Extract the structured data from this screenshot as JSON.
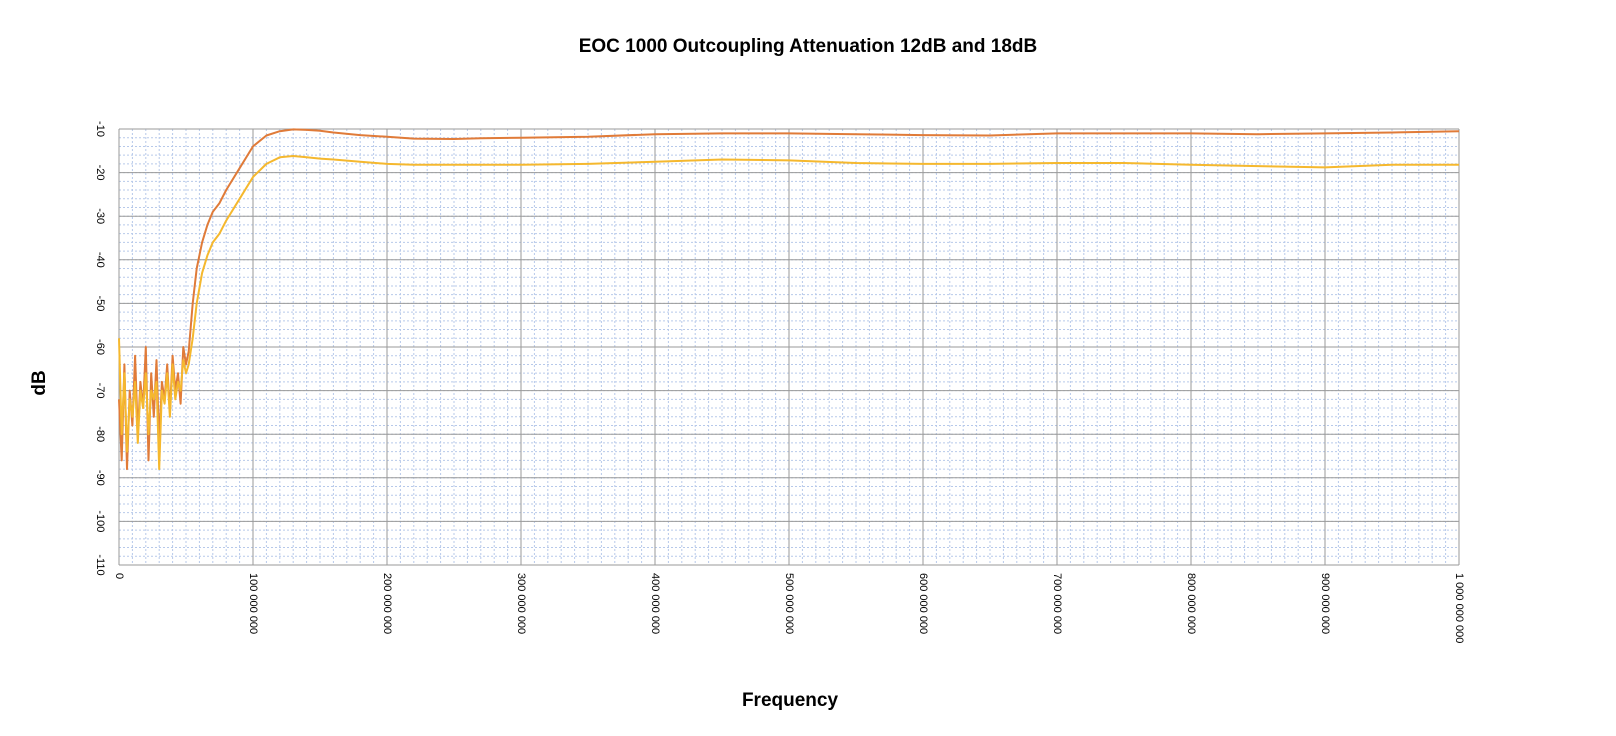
{
  "chart_data": {
    "type": "line",
    "title": "EOC 1000 Outcoupling Attenuation 12dB and 18dB",
    "xlabel": "Frequency",
    "ylabel": "dB",
    "xlim": [
      0,
      1000000000
    ],
    "ylim": [
      -110,
      -10
    ],
    "x_ticks": [
      0,
      100000000,
      200000000,
      300000000,
      400000000,
      500000000,
      600000000,
      700000000,
      800000000,
      900000000,
      1000000000
    ],
    "x_tick_labels": [
      "0",
      "100 000 000",
      "200 000 000",
      "300 000 000",
      "400 000 000",
      "500 000 000",
      "600 000 000",
      "700 000 000",
      "800 000 000",
      "900 000 000",
      "1 000 000 000"
    ],
    "y_ticks": [
      -10,
      -20,
      -30,
      -40,
      -50,
      -60,
      -70,
      -80,
      -90,
      -100,
      -110
    ],
    "y_tick_labels": [
      "-10",
      "-20",
      "-30",
      "-40",
      "-50",
      "-60",
      "-70",
      "-80",
      "-90",
      "-100",
      "-110"
    ],
    "grid": true,
    "legend": "none",
    "series": [
      {
        "color": "#E07B39",
        "x": [
          0,
          2000000,
          4000000,
          6000000,
          8000000,
          10000000,
          12000000,
          14000000,
          16000000,
          18000000,
          20000000,
          22000000,
          24000000,
          26000000,
          28000000,
          30000000,
          32000000,
          34000000,
          36000000,
          38000000,
          40000000,
          42000000,
          44000000,
          46000000,
          48000000,
          50000000,
          52000000,
          55000000,
          58000000,
          62000000,
          66000000,
          70000000,
          75000000,
          80000000,
          90000000,
          100000000,
          110000000,
          120000000,
          130000000,
          140000000,
          150000000,
          160000000,
          180000000,
          200000000,
          220000000,
          250000000,
          270000000,
          300000000,
          350000000,
          400000000,
          450000000,
          500000000,
          550000000,
          600000000,
          650000000,
          700000000,
          750000000,
          800000000,
          850000000,
          900000000,
          950000000,
          1000000000
        ],
        "values": [
          -72,
          -86,
          -64,
          -88,
          -70,
          -78,
          -62,
          -80,
          -68,
          -74,
          -60,
          -86,
          -66,
          -76,
          -63,
          -82,
          -68,
          -72,
          -64,
          -75,
          -62,
          -70,
          -66,
          -73,
          -60,
          -64,
          -61,
          -50,
          -42,
          -36,
          -32,
          -29,
          -27,
          -24,
          -19,
          -14,
          -11.5,
          -10.5,
          -10.1,
          -10.2,
          -10.4,
          -10.8,
          -11.4,
          -11.8,
          -12.2,
          -12.3,
          -12.1,
          -12.0,
          -11.8,
          -11.2,
          -11.0,
          -11.0,
          -11.2,
          -11.4,
          -11.5,
          -11.0,
          -11.0,
          -11.0,
          -11.2,
          -11.0,
          -10.8,
          -10.5
        ]
      },
      {
        "color": "#F5B82E",
        "x": [
          0,
          2000000,
          4000000,
          6000000,
          8000000,
          10000000,
          12000000,
          14000000,
          16000000,
          18000000,
          20000000,
          22000000,
          24000000,
          26000000,
          28000000,
          30000000,
          32000000,
          34000000,
          36000000,
          38000000,
          40000000,
          42000000,
          44000000,
          46000000,
          48000000,
          50000000,
          52000000,
          55000000,
          58000000,
          62000000,
          66000000,
          70000000,
          75000000,
          80000000,
          90000000,
          100000000,
          110000000,
          120000000,
          130000000,
          140000000,
          150000000,
          160000000,
          180000000,
          200000000,
          220000000,
          250000000,
          270000000,
          300000000,
          350000000,
          400000000,
          450000000,
          500000000,
          550000000,
          600000000,
          650000000,
          700000000,
          750000000,
          800000000,
          850000000,
          900000000,
          950000000,
          1000000000
        ],
        "values": [
          -58,
          -80,
          -66,
          -84,
          -72,
          -76,
          -68,
          -82,
          -70,
          -74,
          -66,
          -80,
          -70,
          -72,
          -68,
          -88,
          -70,
          -73,
          -66,
          -76,
          -64,
          -72,
          -68,
          -70,
          -63,
          -66,
          -64,
          -58,
          -50,
          -43,
          -39,
          -36,
          -34,
          -31,
          -26,
          -21,
          -18,
          -16.5,
          -16.2,
          -16.5,
          -16.8,
          -17.0,
          -17.5,
          -18.0,
          -18.2,
          -18.2,
          -18.2,
          -18.2,
          -18.0,
          -17.5,
          -17.0,
          -17.2,
          -17.8,
          -18.0,
          -18.0,
          -17.8,
          -17.8,
          -18.2,
          -18.5,
          -18.8,
          -18.2,
          -18.2
        ]
      }
    ]
  }
}
